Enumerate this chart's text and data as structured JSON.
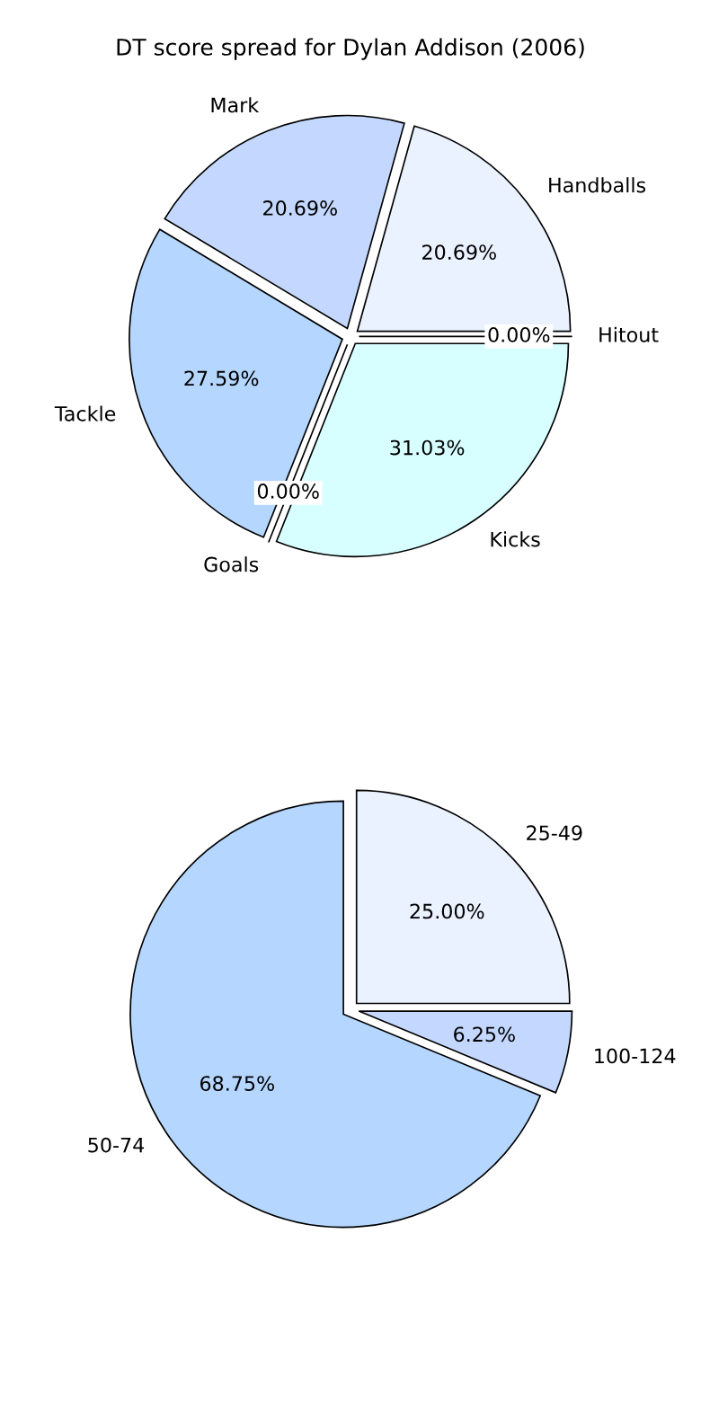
{
  "chart_data": [
    {
      "type": "pie",
      "title": "DT score spread for Dylan Addison (2006)",
      "categories": [
        "Handballs",
        "Mark",
        "Tackle",
        "Goals",
        "Kicks",
        "Hitout"
      ],
      "values": [
        20.69,
        20.69,
        27.59,
        0.0,
        31.03,
        0.0
      ],
      "value_labels": [
        "20.69%",
        "20.69%",
        "27.59%",
        "0.00%",
        "31.03%",
        "0.00%"
      ],
      "colors": [
        "#eaf1ff",
        "#c4d8ff",
        "#b4d6ff",
        "#eaf1ff",
        "#d8ffff",
        "#c4d8ff"
      ]
    },
    {
      "type": "pie",
      "categories": [
        "25-49",
        "50-74",
        "100-124"
      ],
      "values": [
        25.0,
        68.75,
        6.25
      ],
      "value_labels": [
        "25.00%",
        "68.75%",
        "6.25%"
      ],
      "colors": [
        "#eaf1ff",
        "#b4d6ff",
        "#c4d8ff"
      ]
    }
  ]
}
